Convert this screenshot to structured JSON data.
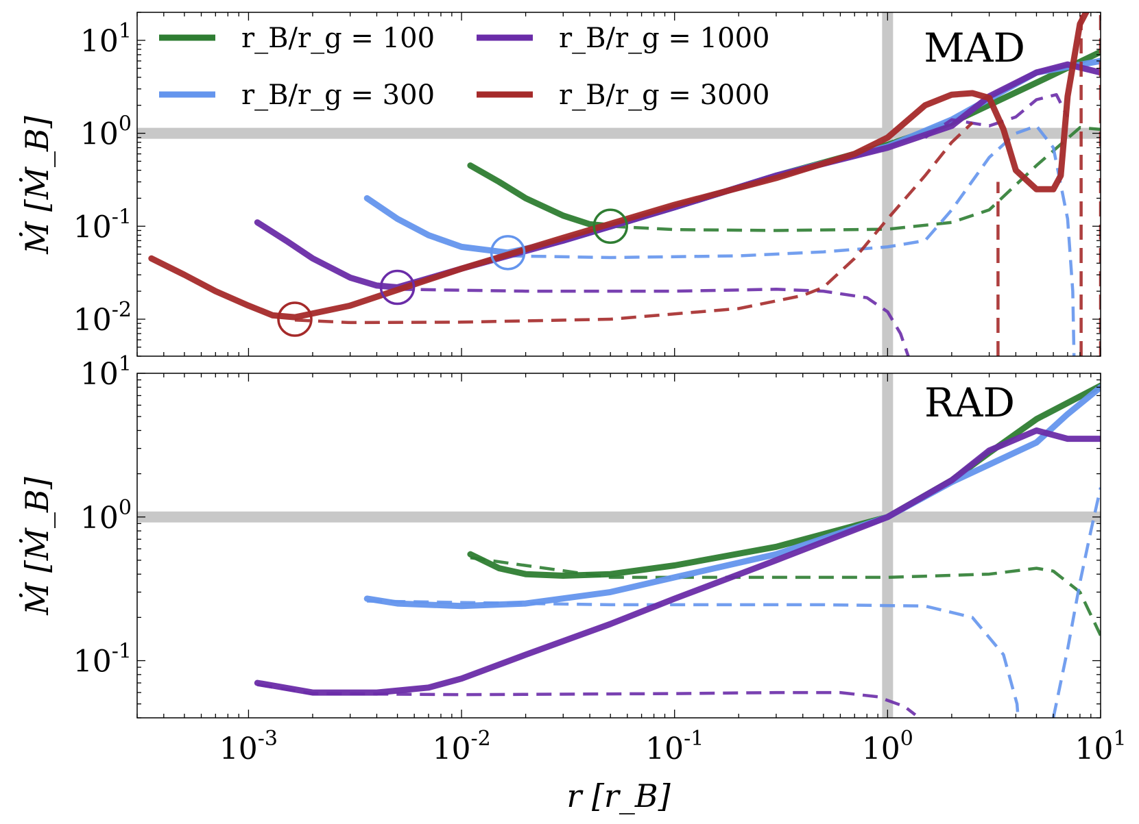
{
  "colors": {
    "100": "#2e7d32",
    "300": "#6495ed",
    "1000": "#6a2ca8",
    "3000": "#a52a2a",
    "reference": "#c8c8c8"
  },
  "legend": [
    {
      "key": "100",
      "label": "r_B/r_g = 100"
    },
    {
      "key": "1000",
      "label": "r_B/r_g = 1000"
    },
    {
      "key": "300",
      "label": "r_B/r_g = 300"
    },
    {
      "key": "3000",
      "label": "r_B/r_g = 3000"
    }
  ],
  "labels": {
    "xlabel": "r [r_B]",
    "ylabel_top": "Ṁ [Ṁ_B]",
    "ylabel_bottom": "Ṁ [Ṁ_B]",
    "ytick_base": "10",
    "xtick_base": "10"
  },
  "chart_data": [
    {
      "type": "line",
      "panel_label": "MAD",
      "xscale": "log",
      "yscale": "log",
      "xlim": [
        0.0003,
        10
      ],
      "ylim": [
        0.004,
        20
      ],
      "xticks": [
        {
          "base": "10",
          "exp": "-3"
        },
        {
          "base": "10",
          "exp": "-2"
        },
        {
          "base": "10",
          "exp": "-1"
        },
        {
          "base": "10",
          "exp": "0"
        },
        {
          "base": "10",
          "exp": "1"
        }
      ],
      "yticks": [
        {
          "base": "10",
          "exp": "-2"
        },
        {
          "base": "10",
          "exp": "-1"
        },
        {
          "base": "10",
          "exp": "0"
        },
        {
          "base": "10",
          "exp": "1"
        }
      ],
      "reference_lines": {
        "x": 1,
        "y": 1
      },
      "markers": [
        {
          "series": "100",
          "x": 0.05,
          "y": 0.1
        },
        {
          "series": "300",
          "x": 0.0165,
          "y": 0.052
        },
        {
          "series": "1000",
          "x": 0.005,
          "y": 0.022
        },
        {
          "series": "3000",
          "x": 0.00165,
          "y": 0.01
        }
      ],
      "series": [
        {
          "key": "100",
          "style": "solid",
          "x": [
            0.011,
            0.015,
            0.02,
            0.03,
            0.04,
            0.05,
            0.1,
            0.3,
            1,
            2,
            5,
            10
          ],
          "y": [
            0.45,
            0.3,
            0.2,
            0.13,
            0.105,
            0.1,
            0.16,
            0.35,
            0.75,
            1.3,
            3.5,
            7.5
          ]
        },
        {
          "key": "100",
          "style": "dashed",
          "x": [
            0.05,
            0.1,
            0.3,
            1,
            2,
            3,
            5,
            8,
            10
          ],
          "y": [
            0.1,
            0.092,
            0.09,
            0.093,
            0.11,
            0.15,
            0.45,
            1.15,
            1.1
          ]
        },
        {
          "key": "300",
          "style": "solid",
          "x": [
            0.0036,
            0.005,
            0.007,
            0.01,
            0.0165,
            0.03,
            0.1,
            0.3,
            1,
            2,
            5,
            10
          ],
          "y": [
            0.2,
            0.12,
            0.08,
            0.06,
            0.052,
            0.07,
            0.16,
            0.35,
            0.72,
            1.4,
            4.5,
            6
          ]
        },
        {
          "key": "300",
          "style": "dashed",
          "x": [
            0.0165,
            0.05,
            0.2,
            0.5,
            1,
            1.5,
            2,
            3,
            4,
            5,
            6,
            7,
            7.4,
            7.5
          ],
          "y": [
            0.048,
            0.046,
            0.048,
            0.053,
            0.06,
            0.07,
            0.15,
            0.55,
            1.0,
            1.2,
            0.7,
            0.12,
            0.02,
            0.004
          ]
        },
        {
          "key": "1000",
          "style": "solid",
          "x": [
            0.0011,
            0.0015,
            0.002,
            0.003,
            0.004,
            0.005,
            0.01,
            0.03,
            0.1,
            0.3,
            1,
            2,
            3,
            5,
            7,
            10
          ],
          "y": [
            0.11,
            0.07,
            0.045,
            0.028,
            0.023,
            0.022,
            0.035,
            0.07,
            0.16,
            0.35,
            0.7,
            1.2,
            2.5,
            4.5,
            5.5,
            4.5
          ]
        },
        {
          "key": "1000",
          "style": "dashed",
          "x": [
            0.005,
            0.02,
            0.1,
            0.3,
            0.5,
            0.8,
            1.0,
            1.15,
            1.25
          ],
          "y": [
            0.021,
            0.02,
            0.02,
            0.021,
            0.02,
            0.017,
            0.012,
            0.007,
            0.004
          ]
        },
        {
          "key": "1000",
          "style": "dashed",
          "x": [
            1.5,
            2,
            3,
            4,
            5,
            6.2,
            7
          ],
          "y": [
            0.9,
            1.4,
            1.2,
            1.5,
            2.3,
            2.6,
            1.5
          ]
        },
        {
          "key": "3000",
          "style": "solid",
          "x": [
            0.00035,
            0.0005,
            0.0007,
            0.001,
            0.0013,
            0.00165,
            0.003,
            0.01,
            0.03,
            0.1,
            0.3,
            0.7,
            1,
            1.5,
            2,
            2.5,
            3,
            3.5,
            4,
            5,
            6,
            6.5,
            7,
            8,
            9,
            10
          ],
          "y": [
            0.045,
            0.03,
            0.02,
            0.014,
            0.011,
            0.0105,
            0.014,
            0.035,
            0.075,
            0.17,
            0.33,
            0.6,
            0.9,
            2.0,
            2.6,
            2.7,
            2.4,
            1.1,
            0.4,
            0.25,
            0.25,
            0.35,
            2.5,
            15,
            25,
            30
          ]
        },
        {
          "key": "3000",
          "style": "dashed",
          "x": [
            0.00165,
            0.003,
            0.01,
            0.05,
            0.2,
            0.4,
            0.5,
            0.7,
            1,
            1.5,
            2,
            2.5
          ],
          "y": [
            0.0098,
            0.0092,
            0.0093,
            0.01,
            0.013,
            0.018,
            0.022,
            0.045,
            0.12,
            0.35,
            0.8,
            1.3
          ]
        },
        {
          "key": "3000",
          "style": "dashed",
          "x": [
            3.3,
            3.3
          ],
          "y": [
            0.004,
            0.3
          ]
        },
        {
          "key": "3000",
          "style": "dashed",
          "x": [
            8.1,
            8.1
          ],
          "y": [
            0.004,
            20
          ]
        },
        {
          "key": "3000",
          "style": "dashed",
          "x": [
            10,
            10
          ],
          "y": [
            0.004,
            20
          ]
        }
      ]
    },
    {
      "type": "line",
      "panel_label": "RAD",
      "xscale": "log",
      "yscale": "log",
      "xlim": [
        0.0003,
        10
      ],
      "ylim": [
        0.04,
        10
      ],
      "xticks": [
        {
          "base": "10",
          "exp": "-3"
        },
        {
          "base": "10",
          "exp": "-2"
        },
        {
          "base": "10",
          "exp": "-1"
        },
        {
          "base": "10",
          "exp": "0"
        },
        {
          "base": "10",
          "exp": "1"
        }
      ],
      "yticks": [
        {
          "base": "10",
          "exp": "-1"
        },
        {
          "base": "10",
          "exp": "0"
        },
        {
          "base": "10",
          "exp": "1"
        }
      ],
      "reference_lines": {
        "x": 1,
        "y": 1
      },
      "series": [
        {
          "key": "100",
          "style": "solid",
          "x": [
            0.011,
            0.015,
            0.02,
            0.03,
            0.05,
            0.1,
            0.3,
            1,
            2,
            3,
            5,
            10
          ],
          "y": [
            0.55,
            0.44,
            0.4,
            0.39,
            0.4,
            0.46,
            0.62,
            1.0,
            1.8,
            2.8,
            4.8,
            8.2
          ]
        },
        {
          "key": "100",
          "style": "dashed",
          "x": [
            0.011,
            0.05,
            0.3,
            1,
            3,
            5,
            6,
            8,
            10
          ],
          "y": [
            0.52,
            0.38,
            0.38,
            0.38,
            0.4,
            0.44,
            0.42,
            0.3,
            0.15
          ]
        },
        {
          "key": "300",
          "style": "solid",
          "x": [
            0.0036,
            0.005,
            0.01,
            0.02,
            0.05,
            0.1,
            0.3,
            1,
            2,
            5,
            7,
            10
          ],
          "y": [
            0.27,
            0.25,
            0.24,
            0.25,
            0.3,
            0.38,
            0.55,
            1.0,
            1.75,
            3.3,
            5.2,
            8
          ]
        },
        {
          "key": "300",
          "style": "dashed",
          "x": [
            0.0036,
            0.05,
            0.5,
            1.5,
            2.5,
            3.5,
            4.05,
            4.1
          ],
          "y": [
            0.26,
            0.245,
            0.245,
            0.24,
            0.2,
            0.11,
            0.05,
            0.04
          ]
        },
        {
          "key": "300",
          "style": "dashed",
          "x": [
            6,
            7,
            8,
            9,
            10
          ],
          "y": [
            0.04,
            0.12,
            0.35,
            0.8,
            1.6
          ]
        },
        {
          "key": "1000",
          "style": "solid",
          "x": [
            0.0011,
            0.002,
            0.004,
            0.007,
            0.01,
            0.02,
            0.05,
            0.1,
            0.3,
            1,
            2,
            3,
            5,
            7,
            10
          ],
          "y": [
            0.07,
            0.06,
            0.06,
            0.065,
            0.075,
            0.11,
            0.18,
            0.27,
            0.5,
            1.0,
            1.8,
            2.9,
            4.0,
            3.5,
            3.5
          ]
        },
        {
          "key": "1000",
          "style": "dashed",
          "x": [
            0.0011,
            0.002,
            0.01,
            0.1,
            0.3,
            0.6,
            0.9,
            1.2,
            1.35
          ],
          "y": [
            0.068,
            0.059,
            0.058,
            0.059,
            0.06,
            0.06,
            0.056,
            0.048,
            0.042
          ]
        }
      ]
    }
  ]
}
